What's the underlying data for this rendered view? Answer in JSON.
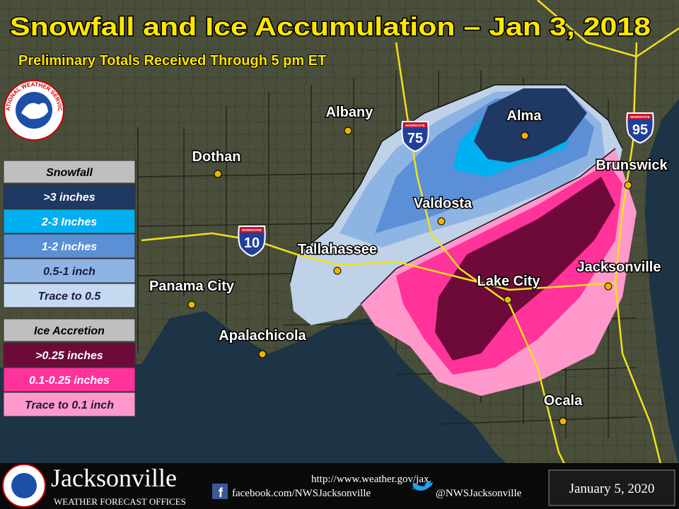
{
  "title": "Snowfall and Ice Accumulation – Jan 3, 2018",
  "subtitle": "Preliminary Totals Received Through 5 pm ET",
  "logo_text": "NATIONAL WEATHER SERVICE",
  "legend": {
    "snowfall": {
      "title": "Snowfall",
      "items": [
        {
          "label": ">3 inches",
          "color": "#1f3864"
        },
        {
          "label": "2-3 Inches",
          "color": "#00b0f0"
        },
        {
          "label": "1-2 inches",
          "color": "#5b8fd6"
        },
        {
          "label": "0.5-1 inch",
          "color": "#8eb4e3"
        },
        {
          "label": "Trace to 0.5",
          "color": "#c5d9f1"
        }
      ]
    },
    "ice": {
      "title": "Ice Accretion",
      "items": [
        {
          "label": ">0.25 inches",
          "color": "#6d0a3a"
        },
        {
          "label": "0.1-0.25 inches",
          "color": "#ff3399"
        },
        {
          "label": "Trace to 0.1 inch",
          "color": "#ff99cc"
        }
      ]
    }
  },
  "cities": [
    "Albany",
    "Alma",
    "Dothan",
    "Brunswick",
    "Valdosta",
    "Tallahassee",
    "Lake City",
    "Jacksonville",
    "Panama City",
    "Apalachicola",
    "Ocala"
  ],
  "interstates": [
    {
      "label": "INTERSTATE",
      "number": "75"
    },
    {
      "label": "INTERSTATE",
      "number": "10"
    },
    {
      "label": "INTERSTATE",
      "number": "95"
    }
  ],
  "footer": {
    "office": "Jacksonville",
    "subtitle": "WEATHER FORECAST OFFICES",
    "url": "http://www.weather.gov/jax",
    "facebook": "facebook.com/NWSJacksonville",
    "twitter": "@NWSJacksonville",
    "date": "January 5, 2020"
  }
}
